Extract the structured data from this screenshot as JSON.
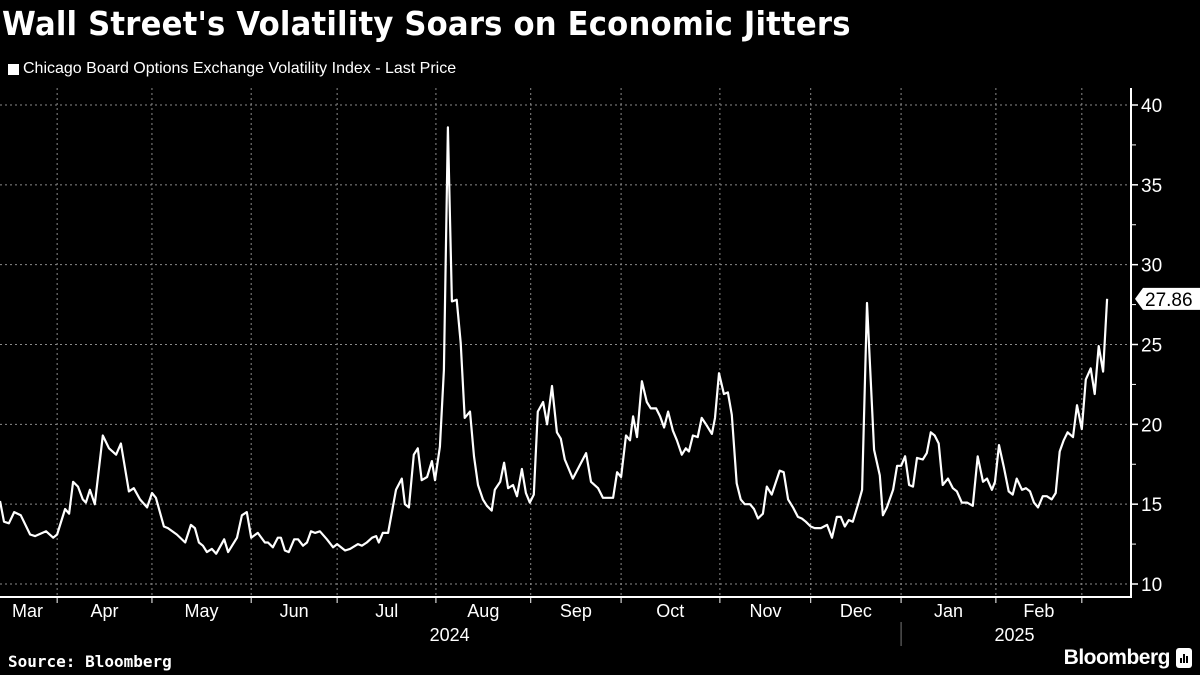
{
  "title": "Wall Street's Volatility Soars on Economic Jitters",
  "source": "Source: Bloomberg",
  "brand": "Bloomberg",
  "colors": {
    "background": "#000000",
    "line": "#ffffff",
    "grid": "#777777"
  },
  "chart_data": {
    "type": "line",
    "title": "Wall Street's Volatility Soars on Economic Jitters",
    "xlabel": "",
    "ylabel": "",
    "x_unit": "trading days (approx.) from chart start",
    "xlim": [
      0,
      255.3
    ],
    "ylim": [
      10,
      40
    ],
    "y_ticks": [
      10,
      15,
      20,
      25,
      30,
      35,
      40
    ],
    "y_axis_side": "right",
    "grid": true,
    "legend": {
      "placement": "top-left",
      "entries": [
        "Chicago Board Options Exchange Volatility Index - Last Price"
      ]
    },
    "last_value_label": "27.86",
    "month_boundaries": [
      12.9,
      34.3,
      56.7,
      76.1,
      98.4,
      119.8,
      140.2,
      162.5,
      183.0,
      203.4,
      224.8,
      244.2
    ],
    "month_labels": [
      {
        "label": "Mar",
        "x": 6.2
      },
      {
        "label": "Apr",
        "x": 23.6
      },
      {
        "label": "May",
        "x": 45.5
      },
      {
        "label": "Jun",
        "x": 66.4
      },
      {
        "label": "Jul",
        "x": 87.3
      },
      {
        "label": "Aug",
        "x": 109.1
      },
      {
        "label": "Sep",
        "x": 130.0
      },
      {
        "label": "Oct",
        "x": 151.3
      },
      {
        "label": "Nov",
        "x": 172.8
      },
      {
        "label": "Dec",
        "x": 193.2
      },
      {
        "label": "Jan",
        "x": 214.1
      },
      {
        "label": "Feb",
        "x": 234.5
      }
    ],
    "year_labels": [
      {
        "label": "2024",
        "x": 101.5
      },
      {
        "label": "2025",
        "x": 229.0
      }
    ],
    "year_separator": 203.4,
    "series": [
      {
        "name": "Chicago Board Options Exchange Volatility Index - Last Price",
        "x": [
          0,
          0.9,
          2.0,
          3.2,
          4.7,
          6.8,
          7.9,
          10.4,
          12.0,
          12.9,
          14.7,
          15.6,
          16.5,
          17.6,
          18.7,
          19.4,
          20.3,
          21.4,
          23.2,
          24.6,
          26.2,
          27.3,
          29.1,
          30.2,
          31.6,
          33.2,
          34.3,
          35.2,
          37.0,
          37.9,
          39.9,
          41.8,
          43.1,
          44.0,
          44.9,
          45.8,
          46.7,
          47.8,
          48.8,
          50.6,
          51.5,
          53.5,
          54.6,
          55.7,
          56.7,
          58.2,
          59.8,
          60.5,
          61.6,
          62.7,
          63.4,
          64.3,
          65.2,
          66.4,
          67.3,
          68.4,
          69.3,
          70.2,
          71.1,
          72.2,
          73.8,
          75.2,
          76.1,
          77.9,
          79.0,
          80.8,
          81.7,
          82.8,
          84.0,
          84.9,
          85.5,
          86.4,
          87.6,
          89.4,
          90.7,
          91.4,
          92.3,
          93.4,
          94.3,
          95.2,
          96.4,
          97.5,
          98.2,
          99.3,
          100.2,
          101.1,
          102.0,
          103.1,
          104.0,
          104.9,
          106.1,
          107.0,
          107.9,
          109.0,
          109.9,
          111.0,
          111.7,
          112.9,
          113.8,
          114.7,
          115.8,
          116.7,
          117.8,
          118.7,
          119.6,
          120.5,
          121.4,
          122.6,
          123.5,
          124.6,
          125.7,
          126.6,
          127.5,
          129.3,
          132.3,
          133.4,
          135.0,
          136.1,
          138.4,
          139.3,
          140.2,
          141.3,
          142.2,
          142.9,
          143.8,
          144.9,
          146.0,
          146.9,
          148.1,
          149.0,
          149.9,
          150.8,
          151.9,
          152.8,
          153.9,
          154.8,
          155.5,
          156.4,
          157.5,
          158.4,
          159.6,
          160.7,
          161.4,
          162.3,
          163.4,
          164.3,
          165.2,
          166.3,
          167.2,
          168.1,
          169.3,
          170.2,
          171.1,
          172.2,
          173.1,
          174.2,
          176.0,
          176.9,
          177.9,
          179.0,
          180.1,
          181.0,
          181.9,
          183.0,
          183.9,
          185.3,
          186.7,
          187.8,
          188.9,
          189.8,
          190.7,
          191.6,
          192.5,
          193.7,
          194.6,
          195.7,
          197.3,
          198.6,
          199.3,
          200.2,
          201.6,
          202.5,
          203.4,
          204.3,
          205.2,
          206.1,
          207.0,
          208.3,
          209.2,
          210.1,
          211.0,
          211.9,
          212.8,
          214.0,
          215.1,
          216.0,
          217.1,
          218.3,
          219.6,
          220.7,
          221.9,
          222.8,
          223.9,
          224.6,
          225.5,
          226.6,
          227.7,
          228.6,
          229.5,
          230.7,
          231.6,
          232.5,
          233.4,
          234.3,
          235.4,
          236.3,
          237.4,
          238.3,
          239.2,
          240.1,
          241.0,
          242.2,
          243.1,
          244.2,
          245.1,
          246.2,
          247.1,
          248.0,
          249.0,
          249.9
        ],
        "y": [
          15.2,
          13.9,
          13.8,
          14.5,
          14.3,
          13.1,
          13.0,
          13.3,
          12.9,
          13.1,
          14.7,
          14.4,
          16.4,
          16.1,
          15.3,
          15.1,
          15.9,
          15.0,
          19.3,
          18.5,
          18.1,
          18.8,
          15.8,
          16.0,
          15.3,
          14.8,
          15.7,
          15.4,
          13.6,
          13.5,
          13.1,
          12.6,
          13.7,
          13.5,
          12.6,
          12.4,
          12.0,
          12.2,
          11.9,
          12.8,
          12.0,
          12.9,
          14.3,
          14.5,
          12.9,
          13.2,
          12.6,
          12.6,
          12.3,
          12.9,
          12.9,
          12.1,
          12.0,
          12.8,
          12.8,
          12.4,
          12.6,
          13.3,
          13.2,
          13.3,
          12.8,
          12.3,
          12.5,
          12.1,
          12.2,
          12.5,
          12.4,
          12.6,
          12.9,
          13.0,
          12.6,
          13.2,
          13.2,
          15.9,
          16.6,
          15.0,
          14.8,
          18.1,
          18.5,
          16.5,
          16.7,
          17.7,
          16.5,
          18.6,
          23.4,
          38.6,
          27.7,
          27.8,
          25.1,
          20.4,
          20.8,
          18.0,
          16.2,
          15.3,
          14.9,
          14.6,
          15.9,
          16.4,
          17.6,
          16.0,
          16.2,
          15.5,
          17.2,
          15.7,
          15.1,
          15.6,
          20.8,
          21.4,
          20.0,
          22.4,
          19.5,
          19.1,
          17.8,
          16.6,
          18.2,
          16.4,
          16.0,
          15.4,
          15.4,
          17.0,
          16.7,
          19.3,
          19.0,
          20.5,
          19.2,
          22.7,
          21.4,
          21.0,
          21.0,
          20.5,
          19.8,
          20.8,
          19.6,
          19.0,
          18.1,
          18.5,
          18.3,
          19.3,
          19.2,
          20.4,
          19.9,
          19.4,
          20.4,
          23.2,
          21.9,
          22.0,
          20.6,
          16.3,
          15.3,
          15.0,
          15.0,
          14.7,
          14.1,
          14.4,
          16.1,
          15.6,
          17.1,
          17.0,
          15.3,
          14.8,
          14.2,
          14.1,
          13.9,
          13.6,
          13.5,
          13.5,
          13.7,
          12.9,
          14.2,
          14.2,
          13.6,
          14.0,
          13.9,
          15.0,
          15.9,
          27.6,
          18.4,
          16.8,
          14.3,
          14.8,
          15.9,
          17.4,
          17.4,
          18.0,
          16.2,
          16.1,
          17.9,
          17.8,
          18.2,
          19.5,
          19.3,
          18.8,
          16.2,
          16.6,
          16.0,
          15.8,
          15.1,
          15.1,
          14.9,
          18.0,
          16.4,
          16.6,
          15.9,
          16.4,
          18.7,
          17.3,
          15.8,
          15.6,
          16.6,
          15.9,
          16.0,
          15.8,
          15.1,
          14.8,
          15.5,
          15.5,
          15.3,
          15.7,
          18.3,
          19.0,
          19.5,
          19.2,
          21.2,
          19.7,
          22.8,
          23.5,
          21.9,
          24.9,
          23.3,
          27.86
        ]
      }
    ]
  }
}
